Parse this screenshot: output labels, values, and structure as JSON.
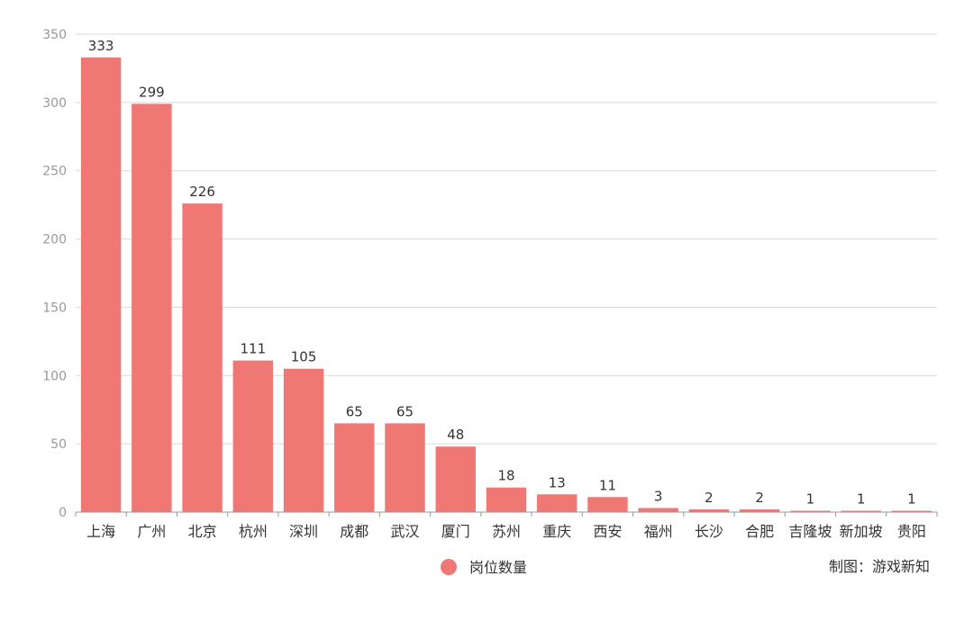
{
  "chart_data": {
    "type": "bar",
    "categories": [
      "上海",
      "广州",
      "北京",
      "杭州",
      "深圳",
      "成都",
      "武汉",
      "厦门",
      "苏州",
      "重庆",
      "西安",
      "福州",
      "长沙",
      "合肥",
      "吉隆坡",
      "新加坡",
      "贵阳"
    ],
    "series": [
      {
        "name": "岗位数量",
        "values": [
          333,
          299,
          226,
          111,
          105,
          65,
          65,
          48,
          18,
          13,
          11,
          3,
          2,
          2,
          1,
          1,
          1
        ]
      }
    ],
    "ylim": [
      0,
      350
    ],
    "yticks": [
      0,
      50,
      100,
      150,
      200,
      250,
      300,
      350
    ],
    "grid": true,
    "legend_position": "bottom-center",
    "bar_color": "#EF7874",
    "credit": "制图：游戏新知"
  }
}
